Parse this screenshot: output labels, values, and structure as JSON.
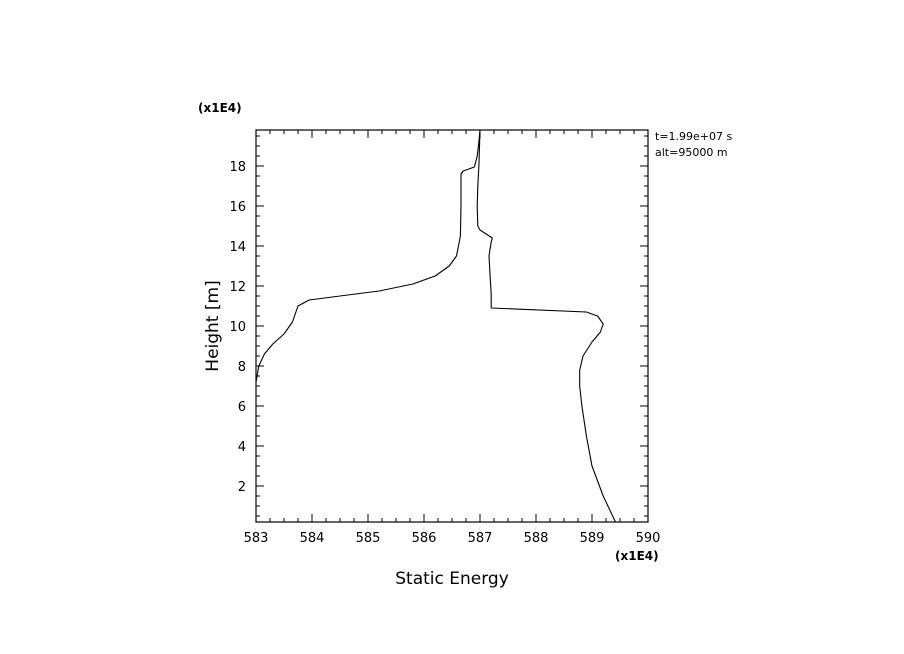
{
  "chart_data": {
    "type": "line",
    "title": "",
    "xlabel": "Static Energy",
    "ylabel": "Height [m]",
    "x_multiplier": "(x1E4)",
    "y_multiplier": "(x1E4)",
    "xlim": [
      583,
      590
    ],
    "ylim": [
      0.2,
      19.8
    ],
    "x_ticks": [
      583,
      584,
      585,
      586,
      587,
      588,
      589,
      590
    ],
    "y_ticks": [
      2,
      4,
      6,
      8,
      10,
      12,
      14,
      16,
      18
    ],
    "grid": false,
    "annotations": [
      "t=1.99e+07 s",
      "alt=95000 m"
    ],
    "series": [
      {
        "name": "",
        "x": [
          589.42,
          589.2,
          589.0,
          588.9,
          588.82,
          588.78,
          588.78,
          588.84,
          589.0,
          589.15,
          589.2,
          589.1,
          588.9,
          587.2,
          587.2,
          587.18,
          587.16,
          587.2,
          587.22,
          587.0,
          586.96,
          586.95,
          586.96,
          586.98,
          587.0
        ],
        "y": [
          0.2,
          1.5,
          3.0,
          4.5,
          6.0,
          7.0,
          7.8,
          8.5,
          9.2,
          9.7,
          10.1,
          10.5,
          10.7,
          10.9,
          11.6,
          12.5,
          13.5,
          14.2,
          14.4,
          14.8,
          15.0,
          16.0,
          17.0,
          18.0,
          19.8
        ]
      },
      {
        "name": "",
        "x": [
          583.0,
          583.05,
          583.15,
          583.3,
          583.5,
          583.65,
          583.75,
          583.95,
          584.5,
          585.2,
          585.8,
          586.2,
          586.45,
          586.58,
          586.65,
          586.66,
          586.66,
          586.7,
          586.8,
          586.9,
          586.95,
          586.98,
          587.0
        ],
        "y": [
          7.2,
          8.0,
          8.6,
          9.1,
          9.6,
          10.2,
          11.0,
          11.3,
          11.5,
          11.75,
          12.1,
          12.5,
          13.0,
          13.5,
          14.5,
          16.0,
          17.6,
          17.75,
          17.85,
          17.95,
          18.5,
          19.2,
          19.8
        ]
      }
    ]
  }
}
